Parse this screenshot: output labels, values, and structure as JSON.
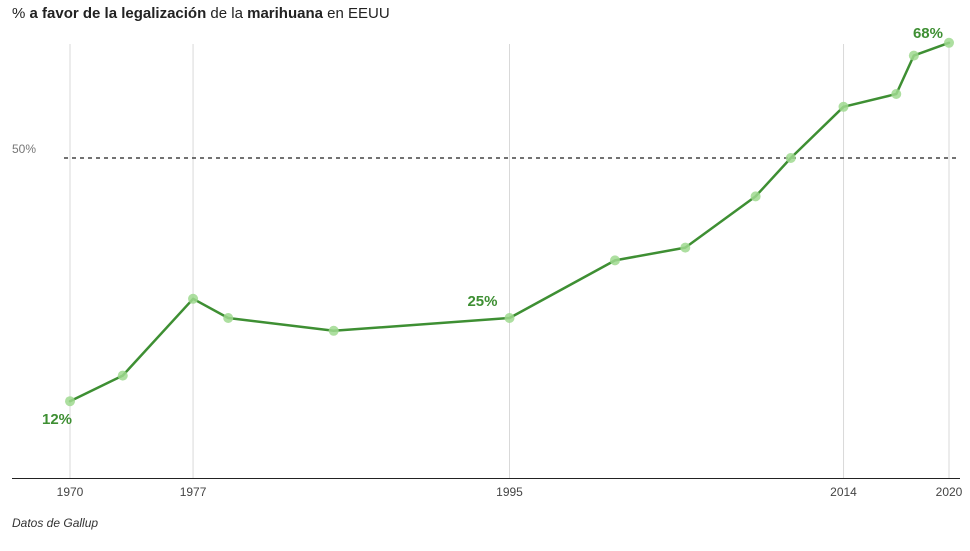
{
  "title": {
    "part1": "% ",
    "part2": "a favor de la legalización",
    "part3": " de la ",
    "part4": "marihuana",
    "part5": " en EEUU"
  },
  "source": "Datos de Gallup",
  "colors": {
    "line": "#3e8f33",
    "marker": "#9fd98f",
    "grid": "#d9d9d9",
    "reference": "#444444"
  },
  "chart_data": {
    "type": "line",
    "x": [
      1970,
      1973,
      1977,
      1979,
      1985,
      1995,
      2001,
      2005,
      2009,
      2011,
      2014,
      2017,
      2018,
      2020
    ],
    "series": [
      {
        "values": [
          12,
          16,
          28,
          25,
          23,
          25,
          34,
          36,
          44,
          50,
          58,
          60,
          66,
          68
        ]
      }
    ],
    "xticks": [
      1970,
      1977,
      1995,
      2014,
      2020
    ],
    "xlim": [
      1966,
      2021
    ],
    "ylim": [
      0,
      72
    ],
    "reference_line": {
      "value": 50,
      "label": "50%"
    },
    "annotations": [
      {
        "x": 1970,
        "y": 12,
        "text": "12%"
      },
      {
        "x": 1995,
        "y": 25,
        "text": "25%"
      },
      {
        "x": 2020,
        "y": 68,
        "text": "68%"
      }
    ]
  }
}
